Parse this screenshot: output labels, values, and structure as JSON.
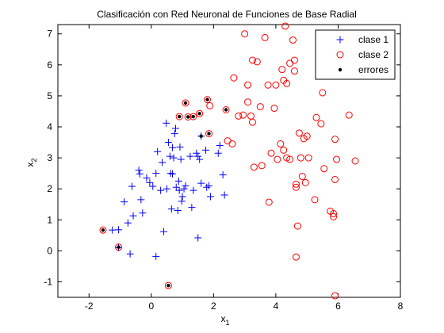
{
  "chart_data": {
    "type": "scatter",
    "title": "Clasificación con Red Neuronal de Funciones de Base Radial",
    "xlabel": "x",
    "xlabel_sub": "1",
    "ylabel": "x",
    "ylabel_sub": "2",
    "xlim": [
      -3,
      8
    ],
    "ylim": [
      -1.5,
      7.3
    ],
    "xticks": [
      -2,
      0,
      2,
      4,
      6,
      8
    ],
    "yticks": [
      -1,
      0,
      1,
      2,
      3,
      4,
      5,
      6,
      7
    ],
    "grid": false,
    "legend_position": "top-right",
    "colors": {
      "clase1": "#0000ff",
      "clase2": "#ff0000",
      "errores": "#000000"
    },
    "series": [
      {
        "name": "clase 1",
        "marker": "plus",
        "points": [
          [
            -1.25,
            0.67
          ],
          [
            -1.05,
            0.68
          ],
          [
            -0.87,
            1.58
          ],
          [
            -0.62,
            2.08
          ],
          [
            -0.75,
            0.9
          ],
          [
            -0.58,
            1.13
          ],
          [
            -0.4,
            2.6
          ],
          [
            -0.37,
            2.48
          ],
          [
            -0.33,
            1.65
          ],
          [
            -0.28,
            1.22
          ],
          [
            -0.15,
            2.35
          ],
          [
            -0.05,
            2.2
          ],
          [
            0.05,
            2.08
          ],
          [
            0.15,
            2.5
          ],
          [
            0.2,
            3.2
          ],
          [
            0.3,
            1.95
          ],
          [
            0.35,
            2.85
          ],
          [
            0.4,
            0.62
          ],
          [
            0.48,
            4.12
          ],
          [
            0.5,
            2.0
          ],
          [
            0.55,
            3.5
          ],
          [
            0.6,
            3.05
          ],
          [
            0.62,
            2.5
          ],
          [
            0.65,
            1.35
          ],
          [
            0.68,
            2.48
          ],
          [
            0.68,
            3.33
          ],
          [
            0.72,
            3.0
          ],
          [
            0.75,
            3.78
          ],
          [
            0.78,
            3.95
          ],
          [
            0.8,
            2.05
          ],
          [
            0.85,
            1.3
          ],
          [
            0.88,
            2.25
          ],
          [
            0.9,
            1.95
          ],
          [
            0.92,
            3.35
          ],
          [
            0.95,
            2.95
          ],
          [
            0.98,
            1.6
          ],
          [
            1.0,
            1.75
          ],
          [
            1.05,
            2.0
          ],
          [
            1.1,
            2.1
          ],
          [
            1.25,
            3.05
          ],
          [
            1.3,
            1.4
          ],
          [
            1.35,
            1.95
          ],
          [
            1.45,
            3.15
          ],
          [
            1.5,
            3.05
          ],
          [
            1.55,
            2.95
          ],
          [
            1.6,
            2.18
          ],
          [
            1.75,
            3.25
          ],
          [
            1.78,
            2.05
          ],
          [
            1.85,
            2.1
          ],
          [
            1.9,
            1.75
          ],
          [
            2.15,
            3.15
          ],
          [
            2.2,
            3.4
          ],
          [
            2.3,
            2.45
          ],
          [
            2.35,
            1.8
          ],
          [
            1.5,
            0.42
          ],
          [
            0.15,
            -0.18
          ],
          [
            -0.68,
            -0.1
          ],
          [
            -1.05,
            0.1
          ],
          [
            1.6,
            3.7
          ]
        ]
      },
      {
        "name": "clase 2",
        "marker": "circle",
        "points": [
          [
            -1.55,
            0.67
          ],
          [
            -1.05,
            0.12
          ],
          [
            0.55,
            -1.12
          ],
          [
            0.9,
            4.33
          ],
          [
            1.1,
            4.77
          ],
          [
            1.18,
            4.32
          ],
          [
            1.35,
            4.33
          ],
          [
            1.55,
            4.43
          ],
          [
            1.8,
            4.88
          ],
          [
            1.85,
            3.78
          ],
          [
            1.88,
            4.68
          ],
          [
            2.4,
            4.55
          ],
          [
            2.45,
            3.55
          ],
          [
            2.6,
            3.45
          ],
          [
            2.65,
            5.58
          ],
          [
            2.8,
            4.35
          ],
          [
            2.95,
            4.38
          ],
          [
            3.0,
            7.0
          ],
          [
            3.1,
            5.35
          ],
          [
            3.1,
            4.8
          ],
          [
            3.2,
            4.35
          ],
          [
            3.25,
            6.15
          ],
          [
            3.25,
            4.15
          ],
          [
            3.3,
            2.7
          ],
          [
            3.4,
            6.1
          ],
          [
            3.5,
            4.65
          ],
          [
            3.55,
            2.75
          ],
          [
            3.65,
            6.88
          ],
          [
            3.75,
            5.35
          ],
          [
            3.78,
            1.57
          ],
          [
            3.85,
            3.15
          ],
          [
            3.95,
            4.6
          ],
          [
            4.0,
            5.35
          ],
          [
            4.05,
            2.95
          ],
          [
            4.15,
            3.45
          ],
          [
            4.2,
            5.85
          ],
          [
            4.25,
            3.25
          ],
          [
            4.25,
            5.5
          ],
          [
            4.3,
            7.25
          ],
          [
            4.35,
            3.0
          ],
          [
            4.45,
            2.95
          ],
          [
            4.55,
            6.8
          ],
          [
            4.6,
            6.15
          ],
          [
            4.6,
            5.8
          ],
          [
            4.65,
            2.15
          ],
          [
            4.65,
            2.05
          ],
          [
            4.65,
            -0.2
          ],
          [
            4.7,
            0.8
          ],
          [
            4.75,
            3.8
          ],
          [
            4.8,
            3.0
          ],
          [
            4.85,
            2.4
          ],
          [
            4.9,
            3.62
          ],
          [
            4.95,
            2.2
          ],
          [
            5.05,
            3.0
          ],
          [
            5.0,
            3.7
          ],
          [
            5.25,
            1.65
          ],
          [
            5.3,
            4.3
          ],
          [
            5.45,
            4.1
          ],
          [
            5.5,
            5.1
          ],
          [
            5.55,
            2.65
          ],
          [
            5.75,
            1.28
          ],
          [
            5.85,
            1.2
          ],
          [
            5.85,
            1.1
          ],
          [
            5.9,
            2.3
          ],
          [
            5.9,
            3.6
          ],
          [
            5.95,
            2.95
          ],
          [
            5.9,
            -1.45
          ],
          [
            6.35,
            4.38
          ],
          [
            6.55,
            2.9
          ],
          [
            4.45,
            6.05
          ],
          [
            4.35,
            5.4
          ]
        ]
      },
      {
        "name": "errores",
        "marker": "dot",
        "points": [
          [
            -1.55,
            0.67
          ],
          [
            -1.05,
            0.12
          ],
          [
            0.55,
            -1.12
          ],
          [
            0.9,
            4.33
          ],
          [
            1.1,
            4.77
          ],
          [
            1.18,
            4.32
          ],
          [
            1.35,
            4.33
          ],
          [
            1.55,
            4.43
          ],
          [
            1.8,
            4.88
          ],
          [
            1.85,
            3.78
          ],
          [
            2.4,
            4.55
          ],
          [
            1.6,
            3.7
          ]
        ]
      }
    ]
  }
}
